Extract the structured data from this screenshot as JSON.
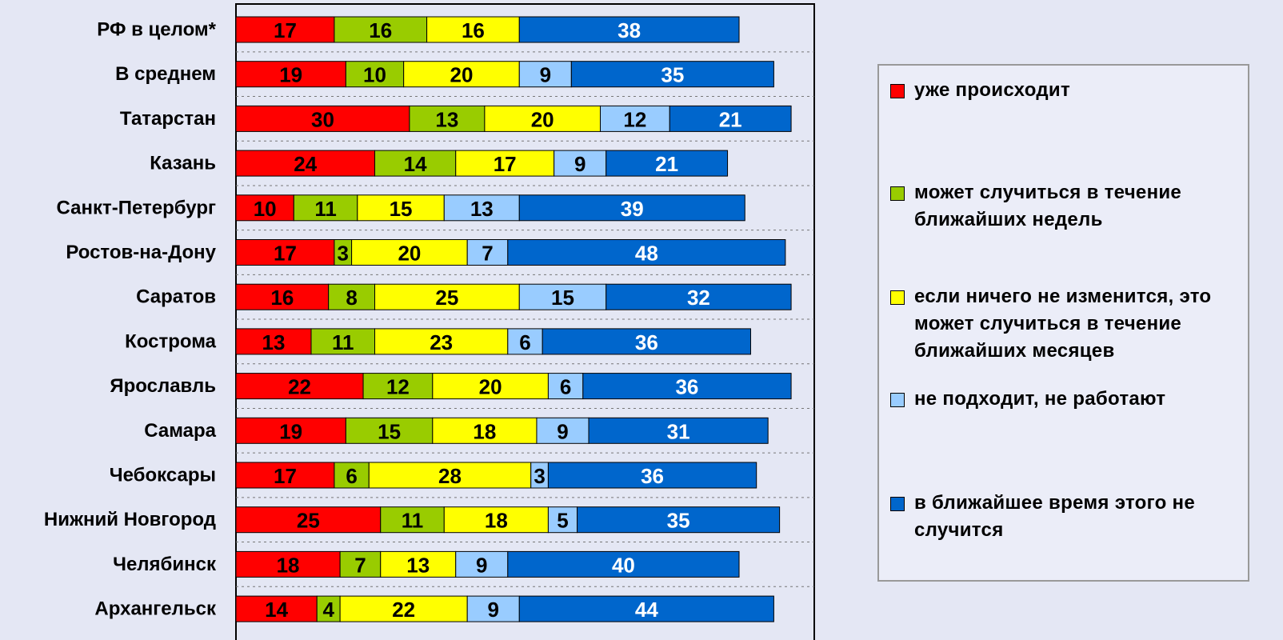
{
  "chart_data": {
    "type": "stacked_barh",
    "categories": [
      "РФ в целом*",
      "В среднем",
      "Татарстан",
      "Казань",
      "Санкт-Петербург",
      "Ростов-на-Дону",
      "Саратов",
      "Кострома",
      "Ярославль",
      "Самара",
      "Чебоксары",
      "Нижний Новгород",
      "Челябинск",
      "Архангельск"
    ],
    "series": [
      {
        "name": "уже происходит",
        "color": "#ff0000",
        "values": [
          17,
          19,
          30,
          24,
          10,
          17,
          16,
          13,
          22,
          19,
          17,
          25,
          18,
          14
        ]
      },
      {
        "name": "может случиться в течение ближайших недель",
        "color": "#99cc00",
        "values": [
          16,
          10,
          13,
          14,
          11,
          3,
          8,
          11,
          12,
          15,
          6,
          11,
          7,
          4
        ]
      },
      {
        "name": "если ничего не изменится, это может случиться в течение ближайших месяцев",
        "color": "#ffff00",
        "values": [
          16,
          20,
          20,
          17,
          15,
          20,
          25,
          23,
          20,
          18,
          28,
          18,
          13,
          22
        ]
      },
      {
        "name": "не подходит, не работают",
        "color": "#99ccff",
        "values": [
          null,
          9,
          12,
          9,
          13,
          7,
          15,
          6,
          6,
          9,
          3,
          5,
          9,
          9
        ]
      },
      {
        "name": "в ближайшее время этого не случится",
        "color": "#0066cc",
        "values": [
          38,
          35,
          21,
          21,
          39,
          48,
          32,
          36,
          36,
          31,
          36,
          35,
          40,
          44
        ]
      }
    ],
    "xlim": [
      0,
      100
    ]
  }
}
